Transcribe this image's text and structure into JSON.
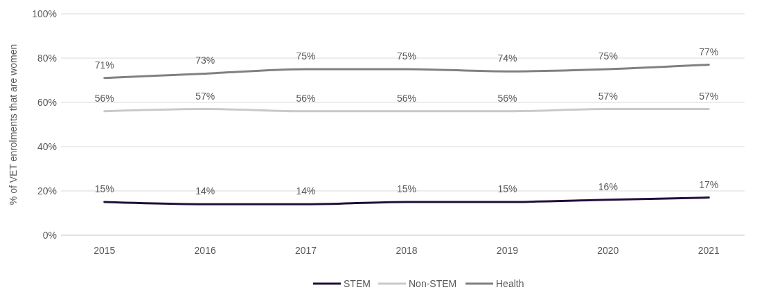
{
  "chart_data": {
    "type": "line",
    "ylabel": "% of VET enrolments that are women",
    "categories": [
      "2015",
      "2016",
      "2017",
      "2018",
      "2019",
      "2020",
      "2021"
    ],
    "series": [
      {
        "name": "STEM",
        "color": "#1f0f3a",
        "values": [
          15,
          14,
          14,
          15,
          15,
          16,
          17
        ],
        "value_labels": [
          "15%",
          "14%",
          "14%",
          "15%",
          "15%",
          "16%",
          "17%"
        ]
      },
      {
        "name": "Non-STEM",
        "color": "#c9c9c9",
        "values": [
          56,
          57,
          56,
          56,
          56,
          57,
          57
        ],
        "value_labels": [
          "56%",
          "57%",
          "56%",
          "56%",
          "56%",
          "57%",
          "57%"
        ]
      },
      {
        "name": "Health",
        "color": "#808080",
        "values": [
          71,
          73,
          75,
          75,
          74,
          75,
          77
        ],
        "value_labels": [
          "71%",
          "73%",
          "75%",
          "75%",
          "74%",
          "75%",
          "77%"
        ]
      }
    ],
    "ylim": [
      0,
      100
    ],
    "yticks": [
      {
        "value": 0,
        "label": "0%"
      },
      {
        "value": 20,
        "label": "20%"
      },
      {
        "value": 40,
        "label": "40%"
      },
      {
        "value": 60,
        "label": "60%"
      },
      {
        "value": 80,
        "label": "80%"
      },
      {
        "value": 100,
        "label": "100%"
      }
    ],
    "grid": "y",
    "legend": "bottom",
    "marker": "none",
    "line_style": "solid"
  }
}
